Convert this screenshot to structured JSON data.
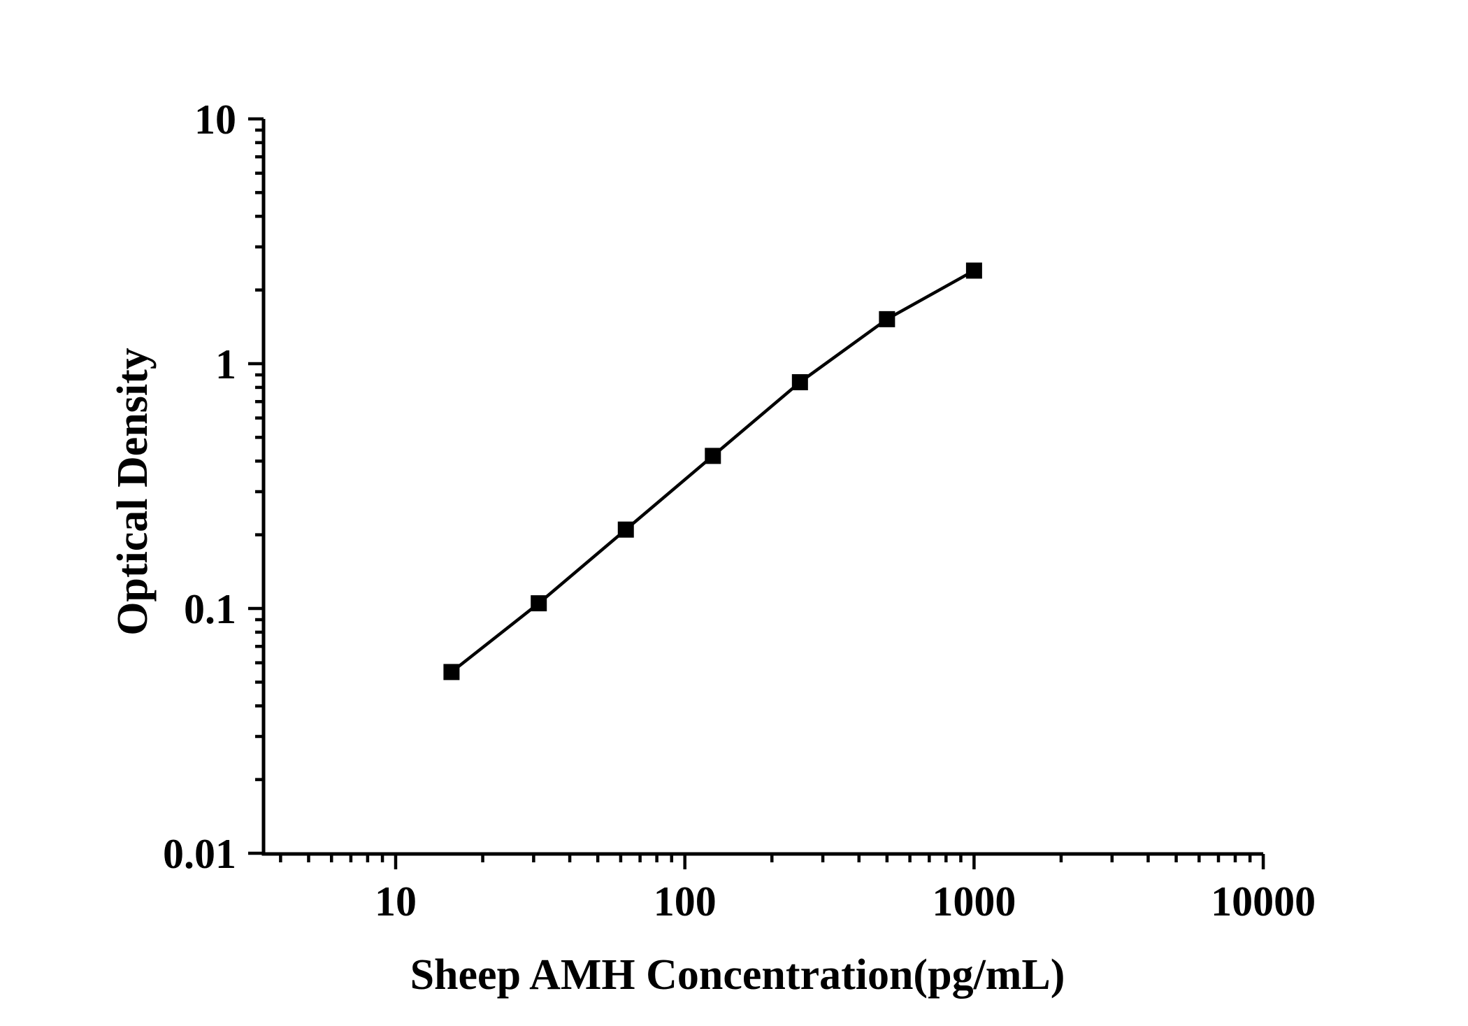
{
  "colors": {
    "foreground": "#000000",
    "background": "#ffffff"
  },
  "chart_data": {
    "type": "line",
    "title": "",
    "xlabel": "Sheep AMH Concentration(pg/mL)",
    "ylabel": "Optical Density",
    "grid": false,
    "legend": false,
    "x_axis": {
      "scale": "log",
      "range": [
        3.5,
        10000
      ],
      "tick_values": [
        10,
        100,
        1000,
        10000
      ],
      "tick_labels": [
        "10",
        "100",
        "1000",
        "10000"
      ],
      "minor_ticks": "log-subdecades"
    },
    "y_axis": {
      "scale": "log",
      "range": [
        0.01,
        10
      ],
      "tick_values": [
        10,
        1,
        0.1,
        0.01
      ],
      "tick_labels": [
        "10",
        "1",
        "0.1",
        "0.01"
      ],
      "minor_ticks": "log-subdecades"
    },
    "series": [
      {
        "name": "standard-curve",
        "marker": "filled-square",
        "line": "solid",
        "color": "#000000",
        "x": [
          15.6,
          31.25,
          62.5,
          125,
          250,
          500,
          1000
        ],
        "y": [
          0.055,
          0.105,
          0.21,
          0.42,
          0.84,
          1.52,
          2.4
        ]
      }
    ]
  }
}
